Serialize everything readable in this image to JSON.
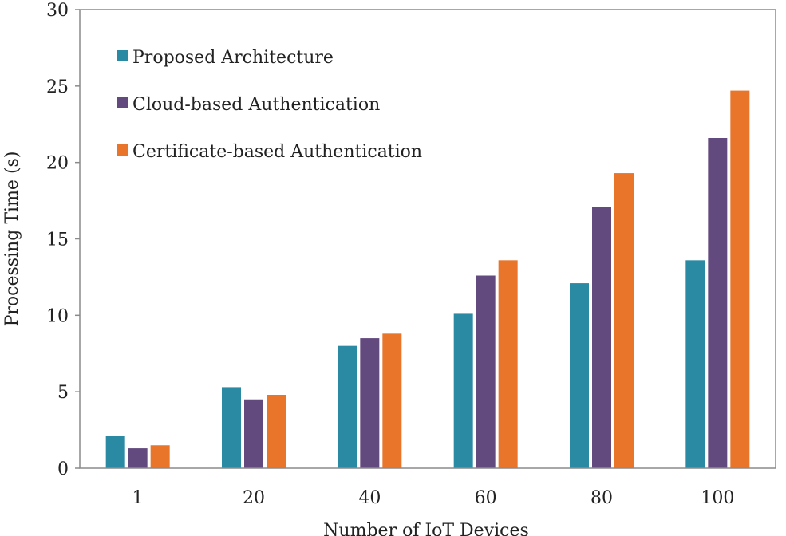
{
  "chart_data": {
    "type": "bar",
    "xlabel": "Number of IoT Devices",
    "ylabel": "Processing Time (s)",
    "categories": [
      "1",
      "20",
      "40",
      "60",
      "80",
      "100"
    ],
    "ylim": [
      0,
      30
    ],
    "yticks": [
      0,
      5,
      10,
      15,
      20,
      25,
      30
    ],
    "grid": false,
    "legend_position": "top-left",
    "series": [
      {
        "name": "Proposed Architecture",
        "color": "#2b8aa3",
        "values": [
          2.1,
          5.3,
          8.0,
          10.1,
          12.1,
          13.6
        ]
      },
      {
        "name": "Cloud-based Authentication",
        "color": "#634a7e",
        "values": [
          1.3,
          4.5,
          8.5,
          12.6,
          17.1,
          21.6
        ]
      },
      {
        "name": "Certificate-based Authentication",
        "color": "#e8752a",
        "values": [
          1.5,
          4.8,
          8.8,
          13.6,
          19.3,
          24.7
        ]
      }
    ]
  }
}
